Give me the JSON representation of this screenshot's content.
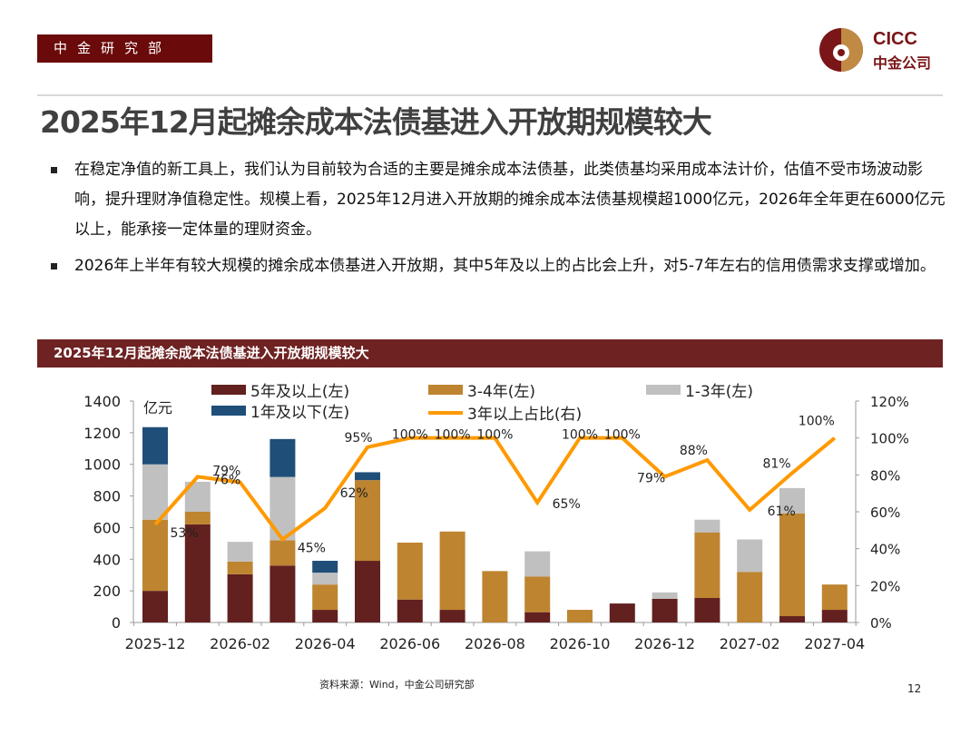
{
  "header": {
    "department": "中金研究部",
    "logo_en": "CICC",
    "logo_cn": "中金公司",
    "brand_color": "#7A1518"
  },
  "title": "2025年12月起摊余成本法债基进入开放期规模较大",
  "bullets": [
    "在稳定净值的新工具上，我们认为目前较为合适的主要是摊余成本法债基，此类债基均采用成本法计价，估值不受市场波动影响，提升理财净值稳定性。规模上看，2025年12月进入开放期的摊余成本法债基规模超1000亿元，2026年全年更在6000亿元以上，能承接一定体量的理财资金。",
    "2026年上半年有较大规模的摊余成本债基进入开放期，其中5年及以上的占比会上升，对5-7年左右的信用债需求支撑或增加。"
  ],
  "section_title": "2025年12月起摊余成本法债基进入开放期规模较大",
  "chart_data": {
    "type": "bar",
    "stacked": true,
    "ylabel": "亿元",
    "ylim": [
      0,
      1400
    ],
    "yticks": [
      "0",
      "200",
      "400",
      "600",
      "800",
      "1000",
      "1200",
      "1400"
    ],
    "y2lim": [
      0,
      120
    ],
    "y2ticks": [
      "0%",
      "20%",
      "40%",
      "60%",
      "80%",
      "100%",
      "120%"
    ],
    "categories": [
      "2025-12",
      "2026-01",
      "2026-02",
      "2026-03",
      "2026-04",
      "2026-05",
      "2026-06",
      "2026-07",
      "2026-08",
      "2026-09",
      "2026-10",
      "2026-11",
      "2026-12",
      "2027-01",
      "2027-02",
      "2027-03",
      "2027-04"
    ],
    "xtick_labels": [
      "2025-12",
      "2026-02",
      "2026-04",
      "2026-06",
      "2026-08",
      "2026-10",
      "2026-12",
      "2027-02",
      "2027-04"
    ],
    "series": [
      {
        "name": "5年及以上(左)",
        "color": "#62201F",
        "values": [
          200,
          620,
          305,
          360,
          80,
          390,
          145,
          80,
          0,
          65,
          0,
          120,
          150,
          155,
          0,
          40,
          80
        ]
      },
      {
        "name": "3-4年(左)",
        "color": "#BE8430",
        "values": [
          450,
          80,
          80,
          160,
          160,
          510,
          360,
          495,
          325,
          225,
          80,
          0,
          0,
          415,
          320,
          650,
          160
        ]
      },
      {
        "name": "1-3年(左)",
        "color": "#C0C0C0",
        "values": [
          350,
          190,
          125,
          400,
          75,
          0,
          0,
          0,
          0,
          160,
          0,
          0,
          40,
          80,
          205,
          160,
          0
        ]
      },
      {
        "name": "1年及以下(左)",
        "color": "#1F4E79",
        "values": [
          235,
          0,
          0,
          240,
          75,
          50,
          0,
          0,
          0,
          0,
          0,
          0,
          0,
          0,
          0,
          0,
          0
        ]
      }
    ],
    "line": {
      "name": "3年以上占比(右)",
      "color": "#FF9900",
      "values": [
        53,
        79,
        76,
        45,
        62,
        95,
        100,
        100,
        100,
        65,
        100,
        100,
        79,
        88,
        61,
        81,
        100
      ],
      "labels": [
        "53%",
        "79%",
        "76%",
        "45%",
        "62%",
        "95%",
        "100%",
        "100%",
        "100%",
        "65%",
        "100%",
        "100%",
        "79%",
        "88%",
        "61%",
        "81%",
        "100%"
      ]
    },
    "legend": "top"
  },
  "footer": {
    "source": "资料来源：Wind，中金公司研究部",
    "page": "12"
  }
}
